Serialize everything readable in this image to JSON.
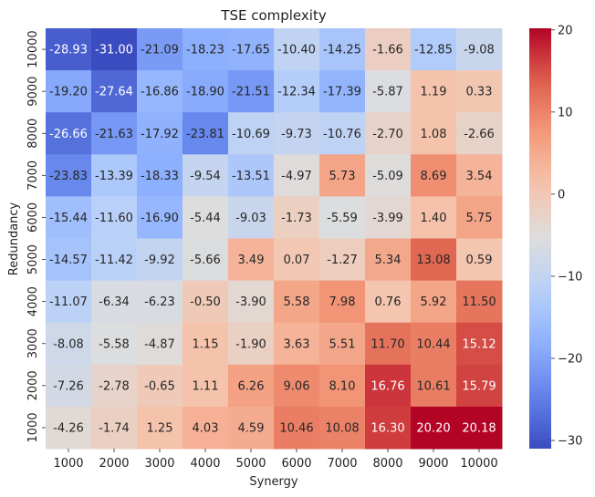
{
  "chart_data": {
    "type": "heatmap",
    "title": "TSE complexity",
    "xlabel": "Synergy",
    "ylabel": "Redundancy",
    "x_categories": [
      "1000",
      "2000",
      "3000",
      "4000",
      "5000",
      "6000",
      "7000",
      "8000",
      "9000",
      "10000"
    ],
    "y_categories": [
      "10000",
      "9000",
      "8000",
      "7000",
      "6000",
      "5000",
      "4000",
      "3000",
      "2000",
      "1000"
    ],
    "values": [
      [
        -28.93,
        -31.0,
        -21.09,
        -18.23,
        -17.65,
        -10.4,
        -14.25,
        -1.66,
        -12.85,
        -9.08
      ],
      [
        -19.2,
        -27.64,
        -16.86,
        -18.9,
        -21.51,
        -12.34,
        -17.39,
        -5.87,
        1.19,
        0.33
      ],
      [
        -26.66,
        -21.63,
        -17.92,
        -23.81,
        -10.69,
        -9.73,
        -10.76,
        -2.7,
        1.08,
        -2.66
      ],
      [
        -23.83,
        -13.39,
        -18.33,
        -9.54,
        -13.51,
        -4.97,
        5.73,
        -5.09,
        8.69,
        3.54
      ],
      [
        -15.44,
        -11.6,
        -16.9,
        -5.44,
        -9.03,
        -1.73,
        -5.59,
        -3.99,
        1.4,
        5.75
      ],
      [
        -14.57,
        -11.42,
        -9.92,
        -5.66,
        3.49,
        0.07,
        -1.27,
        5.34,
        13.08,
        0.59
      ],
      [
        -11.07,
        -6.34,
        -6.23,
        -0.5,
        -3.9,
        5.58,
        7.98,
        0.76,
        5.92,
        11.5
      ],
      [
        -8.08,
        -5.58,
        -4.87,
        1.15,
        -1.9,
        3.63,
        5.51,
        11.7,
        10.44,
        15.12
      ],
      [
        -7.26,
        -2.78,
        -0.65,
        1.11,
        6.26,
        9.06,
        8.1,
        16.76,
        10.61,
        15.79
      ],
      [
        -4.26,
        -1.74,
        1.25,
        4.03,
        4.59,
        10.46,
        10.08,
        16.3,
        20.2,
        20.18
      ]
    ],
    "colormap": "coolwarm",
    "vmin": -31.0,
    "vmax": 20.2,
    "colorbar_ticks": [
      20,
      10,
      0,
      -10,
      -20,
      -30
    ]
  }
}
